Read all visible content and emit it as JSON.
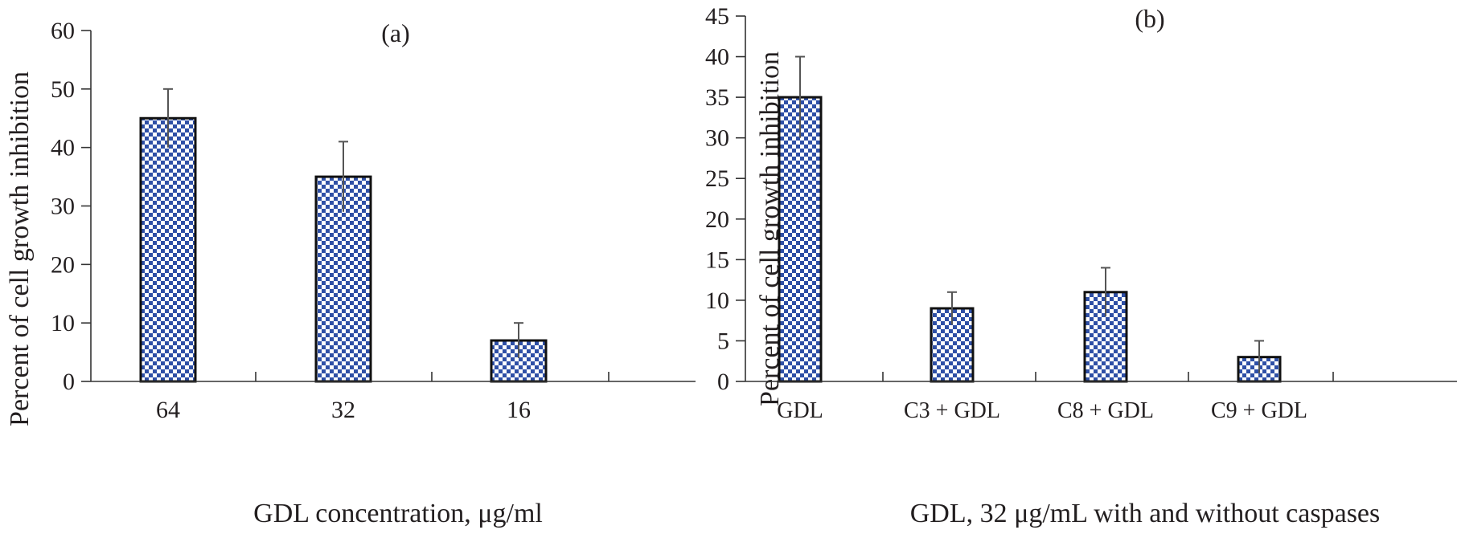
{
  "chart_data": [
    {
      "type": "bar",
      "panel_label": "(a)",
      "categories": [
        "64",
        "32",
        "16"
      ],
      "values": [
        45,
        35,
        7
      ],
      "error_upper": [
        5,
        6,
        3
      ],
      "error_lower": [
        5,
        6,
        3
      ],
      "xlabel": "GDL concentration, μg/ml",
      "ylabel": "Percent of cell growth inhibition",
      "ylim": [
        0,
        60
      ],
      "yticks": [
        "0",
        "10",
        "20",
        "30",
        "40",
        "50",
        "60"
      ],
      "grid": false,
      "bar_fill": "blue-white checkered",
      "colors": {
        "bar_blue": "#2e4fa6",
        "bar_white": "#ffffff",
        "outline": "#111111",
        "error_bar": "#555555"
      }
    },
    {
      "type": "bar",
      "panel_label": "(b)",
      "categories": [
        "GDL",
        "C3 + GDL",
        "C8 + GDL",
        "C9 + GDL"
      ],
      "values": [
        35,
        9,
        11,
        3
      ],
      "error_upper": [
        5,
        2,
        3,
        2
      ],
      "error_lower": [
        5,
        2,
        3,
        2
      ],
      "xlabel": "GDL, 32 μg/mL with and without caspases",
      "ylabel": "Percent of cell growth inhibition",
      "ylim": [
        0,
        45
      ],
      "yticks": [
        "0",
        "5",
        "10",
        "15",
        "20",
        "25",
        "30",
        "35",
        "40",
        "45"
      ],
      "grid": false,
      "bar_fill": "blue-white checkered",
      "colors": {
        "bar_blue": "#2e4fa6",
        "bar_white": "#ffffff",
        "outline": "#111111",
        "error_bar": "#555555"
      }
    }
  ]
}
